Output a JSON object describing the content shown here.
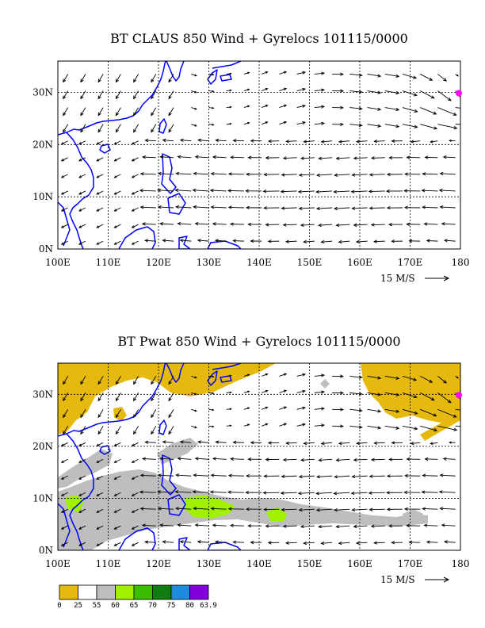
{
  "chart_data": [
    {
      "type": "vector-field",
      "title": "BT CLAUS 850 Wind + Gyrelocs 101115/0000",
      "xlim": [
        100,
        180
      ],
      "ylim": [
        0,
        36
      ],
      "x_ticks": [
        100,
        110,
        120,
        130,
        140,
        150,
        160,
        170,
        180
      ],
      "x_tick_labels": [
        "100E",
        "110E",
        "120E",
        "130E",
        "140E",
        "150E",
        "160E",
        "170E",
        "180"
      ],
      "y_ticks": [
        0,
        10,
        20,
        30
      ],
      "y_tick_labels": [
        "0N",
        "10N",
        "20N",
        "30N"
      ],
      "grid": true,
      "reference_vector_label": "15 M/S",
      "reference_vector_speed": 15,
      "coastline_color": "#0000ff",
      "gyre_location": {
        "lon": 180,
        "lat": 30,
        "color": "#ff00ff"
      }
    },
    {
      "type": "vector-field",
      "title": "BT Pwat 850 Wind + Gyrelocs 101115/0000",
      "xlim": [
        100,
        180
      ],
      "ylim": [
        0,
        36
      ],
      "x_ticks": [
        100,
        110,
        120,
        130,
        140,
        150,
        160,
        170,
        180
      ],
      "x_tick_labels": [
        "100E",
        "110E",
        "120E",
        "130E",
        "140E",
        "150E",
        "160E",
        "170E",
        "180"
      ],
      "y_ticks": [
        0,
        10,
        20,
        30
      ],
      "y_tick_labels": [
        "0N",
        "10N",
        "20N",
        "30N"
      ],
      "grid": true,
      "reference_vector_label": "15 M/S",
      "reference_vector_speed": 15,
      "coastline_color": "#0000ff",
      "gyre_location": {
        "lon": 180,
        "lat": 30,
        "color": "#ff00ff"
      },
      "colorbar": {
        "boundaries": [
          "0",
          "25",
          "55",
          "60",
          "65",
          "70",
          "75",
          "80",
          "63.9"
        ],
        "colors": [
          "#e6b90e",
          "#ffffff",
          "#bebebe",
          "#a0f000",
          "#3cbe00",
          "#117d11",
          "#1e8cdc",
          "#8200dc"
        ]
      }
    }
  ]
}
